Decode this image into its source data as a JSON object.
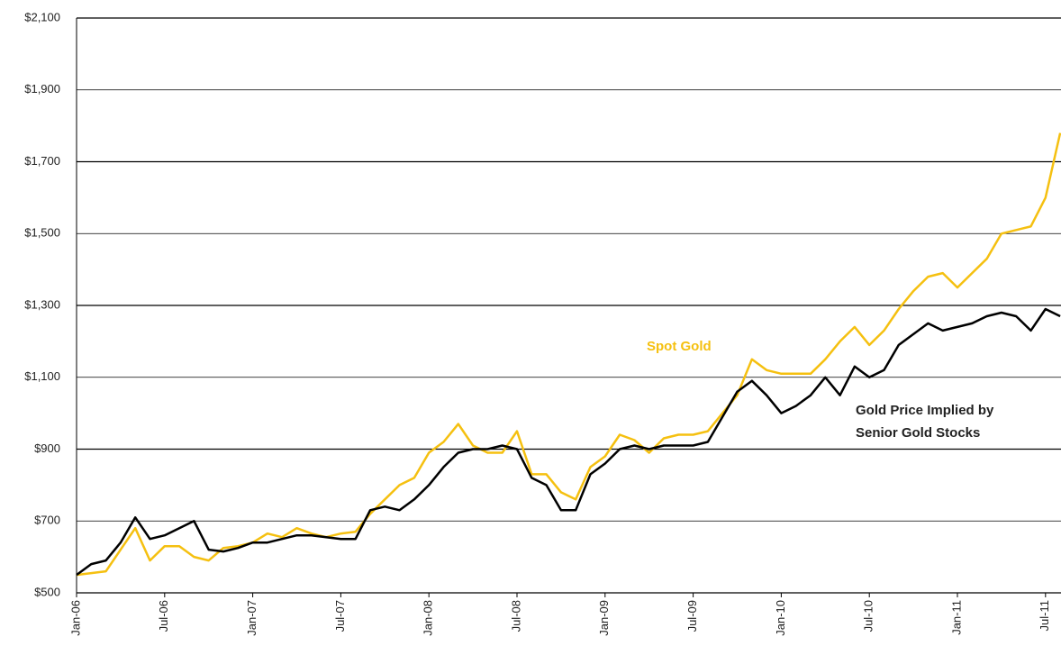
{
  "chart_data": {
    "type": "line",
    "categories": [
      "Jan-06",
      null,
      null,
      null,
      null,
      null,
      "Jul-06",
      null,
      null,
      null,
      null,
      null,
      "Jan-07",
      null,
      null,
      null,
      null,
      null,
      "Jul-07",
      null,
      null,
      null,
      null,
      null,
      "Jan-08",
      null,
      null,
      null,
      null,
      null,
      "Jul-08",
      null,
      null,
      null,
      null,
      null,
      "Jan-09",
      null,
      null,
      null,
      null,
      null,
      "Jul-09",
      null,
      null,
      null,
      null,
      null,
      "Jan-10",
      null,
      null,
      null,
      null,
      null,
      "Jul-10",
      null,
      null,
      null,
      null,
      null,
      "Jan-11",
      null,
      null,
      null,
      null,
      null,
      "Jul-11",
      null
    ],
    "series": [
      {
        "name": "Spot Gold",
        "color": "#f5c010",
        "values": [
          550,
          555,
          560,
          620,
          680,
          590,
          630,
          630,
          600,
          590,
          625,
          630,
          640,
          665,
          655,
          680,
          665,
          655,
          665,
          670,
          720,
          760,
          800,
          820,
          890,
          920,
          970,
          910,
          890,
          890,
          950,
          830,
          830,
          780,
          760,
          850,
          880,
          940,
          925,
          890,
          930,
          940,
          940,
          950,
          1000,
          1050,
          1150,
          1120,
          1110,
          1110,
          1110,
          1150,
          1200,
          1240,
          1190,
          1230,
          1290,
          1340,
          1380,
          1390,
          1350,
          1390,
          1430,
          1500,
          1510,
          1520,
          1600,
          1780
        ]
      },
      {
        "name": "Gold Price Implied by Senior Gold Stocks",
        "color": "#000000",
        "values": [
          550,
          580,
          590,
          640,
          710,
          650,
          660,
          680,
          700,
          620,
          615,
          625,
          640,
          640,
          650,
          660,
          660,
          655,
          650,
          650,
          730,
          740,
          730,
          760,
          800,
          850,
          890,
          900,
          900,
          910,
          900,
          820,
          800,
          730,
          730,
          830,
          860,
          900,
          910,
          900,
          910,
          910,
          910,
          920,
          990,
          1060,
          1090,
          1050,
          1000,
          1020,
          1050,
          1100,
          1050,
          1130,
          1100,
          1120,
          1190,
          1220,
          1250,
          1230,
          1240,
          1250,
          1270,
          1280,
          1270,
          1230,
          1290,
          1270
        ]
      }
    ],
    "annotations": [
      "Spot Gold",
      "Gold Price Implied by",
      "Senior Gold Stocks"
    ],
    "ylim": [
      500,
      2100
    ],
    "yticks": [
      {
        "value": 500,
        "label": "$500"
      },
      {
        "value": 700,
        "label": "$700"
      },
      {
        "value": 900,
        "label": "$900"
      },
      {
        "value": 1100,
        "label": "$1,100"
      },
      {
        "value": 1300,
        "label": "$1,300"
      },
      {
        "value": 1500,
        "label": "$1,500"
      },
      {
        "value": 1700,
        "label": "$1,700"
      },
      {
        "value": 1900,
        "label": "$1,900"
      },
      {
        "value": 2100,
        "label": "$2,100"
      }
    ],
    "grid": true
  }
}
